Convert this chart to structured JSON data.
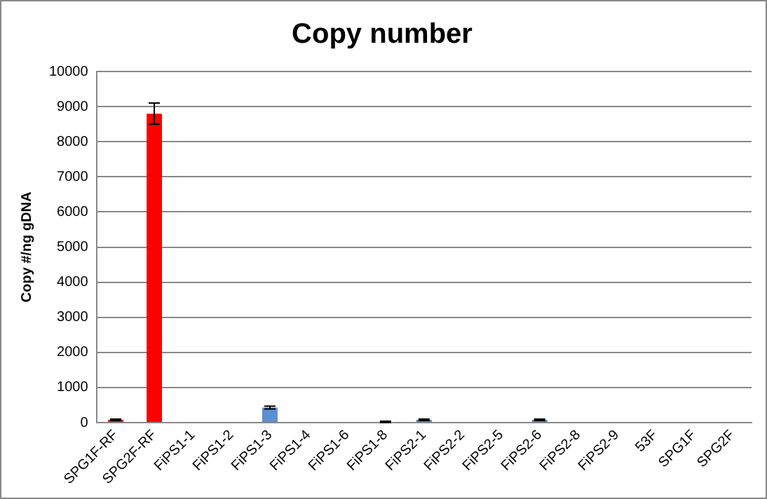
{
  "chart_data": {
    "type": "bar",
    "title": "Copy number",
    "ylabel": "Copy #/ng gDNA",
    "categories": [
      "SPG1F-RF",
      "SPG2F-RF",
      "FiPS1-1",
      "FiPS1-2",
      "FiPS1-3",
      "FiPS1-4",
      "FiPS1-6",
      "FiPS1-8",
      "FiPS2-1",
      "FiPS2-2",
      "FiPS2-5",
      "FiPS2-6",
      "FiPS2-8",
      "FiPS2-9",
      "53F",
      "SPG1F",
      "SPG2F"
    ],
    "values": [
      80,
      8800,
      0,
      0,
      430,
      20,
      20,
      20,
      80,
      0,
      0,
      80,
      20,
      20,
      20,
      0,
      0
    ],
    "errors": [
      20,
      300,
      null,
      null,
      40,
      null,
      null,
      20,
      20,
      null,
      null,
      20,
      null,
      null,
      null,
      null,
      null
    ],
    "colors": [
      "#ff0000",
      "#ff0000",
      "#4f81bd",
      "#4f81bd",
      "#5b8fd0",
      "#9bbbe0",
      "#9bbbe0",
      "#4f81bd",
      "#4f81bd",
      "#4f81bd",
      "#4f81bd",
      "#4f81bd",
      "#9bbbe0",
      "#9bbbe0",
      "#9bbbe0",
      "#4f81bd",
      "#4f81bd"
    ],
    "ylim": [
      0,
      10000
    ],
    "yticks": [
      0,
      1000,
      2000,
      3000,
      4000,
      5000,
      6000,
      7000,
      8000,
      9000,
      10000
    ],
    "grid": "y",
    "legend": false
  }
}
